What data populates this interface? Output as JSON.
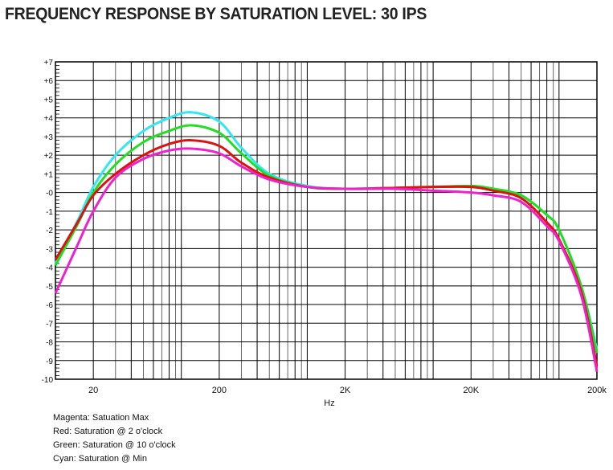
{
  "chart_data": {
    "type": "line",
    "title": "FREQUENCY RESPONSE BY SATURATION LEVEL: 30 IPS",
    "xlabel": "Hz",
    "ylabel": "",
    "xscale": "log",
    "xlim": [
      10,
      200000
    ],
    "ylim": [
      -10,
      7
    ],
    "grid": true,
    "x_ticks": [
      {
        "value": 20,
        "label": "20"
      },
      {
        "value": 200,
        "label": "200"
      },
      {
        "value": 2000,
        "label": "2K"
      },
      {
        "value": 20000,
        "label": "20K"
      },
      {
        "value": 200000,
        "label": "200k"
      }
    ],
    "y_ticks": [
      {
        "value": 7,
        "label": "+7"
      },
      {
        "value": 6,
        "label": "+6"
      },
      {
        "value": 5,
        "label": "+5"
      },
      {
        "value": 4,
        "label": "+4"
      },
      {
        "value": 3,
        "label": "+3"
      },
      {
        "value": 2,
        "label": "+2"
      },
      {
        "value": 1,
        "label": "+1"
      },
      {
        "value": 0,
        "label": "-0"
      },
      {
        "value": -1,
        "label": "-1"
      },
      {
        "value": -2,
        "label": "-2"
      },
      {
        "value": -3,
        "label": "-3"
      },
      {
        "value": -4,
        "label": "-4"
      },
      {
        "value": -5,
        "label": "-5"
      },
      {
        "value": -6,
        "label": "-6"
      },
      {
        "value": -7,
        "label": "-7"
      },
      {
        "value": -8,
        "label": "-8"
      },
      {
        "value": -9,
        "label": "-9"
      },
      {
        "value": -10,
        "label": "-10"
      }
    ],
    "x": [
      10,
      15,
      20,
      30,
      50,
      80,
      120,
      200,
      300,
      500,
      1000,
      2000,
      5000,
      10000,
      20000,
      30000,
      50000,
      80000,
      100000,
      150000,
      200000
    ],
    "series": [
      {
        "name": "Saturation @ Min",
        "color": "#33e6f0",
        "values": [
          -3.8,
          -1.5,
          0.3,
          2.0,
          3.3,
          4.0,
          4.3,
          3.8,
          2.4,
          1.0,
          0.35,
          0.2,
          0.25,
          0.3,
          0.35,
          0.2,
          -0.15,
          -1.2,
          -2.0,
          -5.0,
          -8.4
        ]
      },
      {
        "name": "Saturation @ 10 o'clock",
        "color": "#22dd22",
        "values": [
          -3.9,
          -1.7,
          0.0,
          1.5,
          2.7,
          3.3,
          3.6,
          3.2,
          2.1,
          0.9,
          0.3,
          0.2,
          0.25,
          0.3,
          0.35,
          0.2,
          -0.15,
          -1.2,
          -2.0,
          -5.0,
          -8.6
        ]
      },
      {
        "name": "Saturation @ 2 o'clock",
        "color": "#dd1111",
        "values": [
          -3.6,
          -1.6,
          -0.15,
          1.0,
          2.0,
          2.6,
          2.8,
          2.5,
          1.6,
          0.8,
          0.3,
          0.2,
          0.25,
          0.3,
          0.3,
          0.1,
          -0.3,
          -1.6,
          -2.5,
          -5.3,
          -9.3
        ]
      },
      {
        "name": "Satuation Max",
        "color": "#ee22cc",
        "values": [
          -5.4,
          -2.8,
          -1.0,
          0.8,
          1.8,
          2.25,
          2.35,
          2.1,
          1.4,
          0.7,
          0.3,
          0.2,
          0.2,
          0.1,
          0.0,
          -0.15,
          -0.5,
          -1.8,
          -2.6,
          -5.5,
          -9.6
        ]
      }
    ],
    "legend": [
      "Magenta: Satuation Max",
      "Red: Saturation @ 2 o'clock",
      "Green: Saturation @ 10 o'clock",
      "Cyan: Saturation @ Min"
    ],
    "legend_placement": "bottom-left"
  }
}
